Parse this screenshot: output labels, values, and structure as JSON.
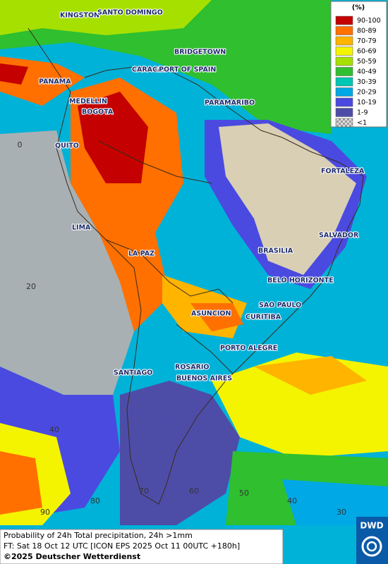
{
  "map": {
    "cities": [
      "KINGSTON",
      "SANTO DOMINGO",
      "BRIDGETOWN",
      "CARACAS",
      "PORT OF SPAIN",
      "PANAMA",
      "MEDELLIN",
      "BOGOTA",
      "PARAMARIBO",
      "QUITO",
      "FORTALEZA",
      "LIMA",
      "SALVADOR",
      "BRASILIA",
      "LA PAZ",
      "BELO HORIZONTE",
      "SAO PAULO",
      "ASUNCION",
      "CURITIBA",
      "PORTO ALEGRE",
      "ROSARIO",
      "BUENOS AIRES",
      "SANTIAGO"
    ],
    "latitude_labels": [
      0,
      20,
      40
    ],
    "longitude_labels": [
      90,
      80,
      70,
      60,
      50,
      40,
      30
    ]
  },
  "legend": {
    "title": "(%)",
    "items": [
      {
        "label": "90-100",
        "color": "#c40000"
      },
      {
        "label": "80-89",
        "color": "#ff7000"
      },
      {
        "label": "70-79",
        "color": "#ffb400"
      },
      {
        "label": "60-69",
        "color": "#f4f400"
      },
      {
        "label": "50-59",
        "color": "#a6e000"
      },
      {
        "label": "40-49",
        "color": "#2fbf2f"
      },
      {
        "label": "30-39",
        "color": "#00c6b4"
      },
      {
        "label": "20-29",
        "color": "#00a8e6"
      },
      {
        "label": "10-19",
        "color": "#4a4ae0"
      },
      {
        "label": "1-9",
        "color": "#4d4da8"
      },
      {
        "label": "<1",
        "color": "#bdbdbd"
      }
    ]
  },
  "caption": {
    "line1": "Probability of 24h Total precipitation, 24h >1mm",
    "line2": "FT: Sat 18 Oct 12 UTC [ICON EPS 2025 Oct 11 00UTC +180h]",
    "line3": "©2025 Deutscher Wetterdienst"
  },
  "logo": "DWD"
}
